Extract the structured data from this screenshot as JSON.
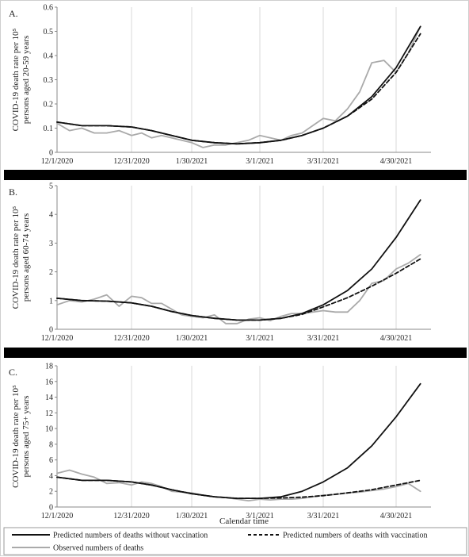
{
  "figure": {
    "x_axis_title": "Calendar time",
    "separator_color": "#000000"
  },
  "legend": {
    "items": [
      {
        "label": "Predicted numbers of deaths without vaccination",
        "color": "#111111",
        "style": "solid",
        "width": 2
      },
      {
        "label": "Predicted numbers of deaths with vaccination",
        "color": "#111111",
        "style": "dashed",
        "width": 2
      },
      {
        "label": "Observed numbers of deaths",
        "color": "#aaaaaa",
        "style": "solid",
        "width": 2
      }
    ]
  },
  "chart_data": [
    {
      "type": "line",
      "panel_label": "A.",
      "ylabel_lines": [
        "COVID-19 death rate per 10⁵",
        "persons aged 20-59 years"
      ],
      "xlabel": "",
      "x_tick_labels": [
        "12/1/2020",
        "12/31/2020",
        "1/30/2021",
        "3/1/2021",
        "3/31/2021",
        "4/30/2021"
      ],
      "x_range_days": [
        0,
        165
      ],
      "ylim": [
        0,
        0.6
      ],
      "y_ticks": [
        0,
        0.1,
        0.2,
        0.3,
        0.4,
        0.5,
        0.6
      ],
      "y_tick_labels": [
        "0",
        "0.1",
        "0.2",
        "0.3",
        "0.4",
        "0.5",
        "0.6"
      ],
      "grid": "vertical",
      "series": [
        {
          "name": "Predicted numbers of deaths without vaccination",
          "style": "solid",
          "color": "#111111",
          "x": [
            0,
            10,
            20,
            30,
            40,
            50,
            60,
            70,
            80,
            90,
            100,
            110,
            120,
            130,
            140,
            150,
            160
          ],
          "y": [
            0.125,
            0.11,
            0.11,
            0.105,
            0.09,
            0.07,
            0.05,
            0.04,
            0.035,
            0.04,
            0.05,
            0.07,
            0.1,
            0.15,
            0.23,
            0.35,
            0.52
          ]
        },
        {
          "name": "Predicted numbers of deaths with vaccination",
          "style": "dashed",
          "color": "#111111",
          "x": [
            0,
            10,
            20,
            30,
            40,
            50,
            60,
            70,
            80,
            90,
            100,
            110,
            120,
            130,
            140,
            150,
            160
          ],
          "y": [
            0.125,
            0.11,
            0.11,
            0.105,
            0.09,
            0.07,
            0.05,
            0.04,
            0.035,
            0.04,
            0.05,
            0.07,
            0.1,
            0.15,
            0.22,
            0.33,
            0.49
          ]
        },
        {
          "name": "Observed numbers of deaths",
          "style": "solid",
          "color": "#aaaaaa",
          "x": [
            0,
            5,
            10,
            15,
            20,
            25,
            30,
            35,
            40,
            45,
            50,
            55,
            60,
            65,
            70,
            75,
            80,
            85,
            90,
            95,
            100,
            105,
            110,
            115,
            120,
            125,
            130,
            135,
            140,
            145,
            150,
            155,
            160
          ],
          "y": [
            0.12,
            0.09,
            0.1,
            0.08,
            0.08,
            0.09,
            0.07,
            0.08,
            0.06,
            0.07,
            0.06,
            0.05,
            0.04,
            0.02,
            0.03,
            0.03,
            0.04,
            0.05,
            0.07,
            0.06,
            0.05,
            0.07,
            0.08,
            0.11,
            0.14,
            0.13,
            0.18,
            0.25,
            0.37,
            0.38,
            0.33,
            0.41,
            0.52
          ]
        }
      ]
    },
    {
      "type": "line",
      "panel_label": "B.",
      "ylabel_lines": [
        "COVID-19 death rate per 10⁵",
        "persons aged 60-74 years"
      ],
      "xlabel": "",
      "x_tick_labels": [
        "12/1/2020",
        "12/31/2020",
        "1/30/2021",
        "3/1/2021",
        "3/31/2021",
        "4/30/2021"
      ],
      "x_range_days": [
        0,
        165
      ],
      "ylim": [
        0,
        5
      ],
      "y_ticks": [
        0,
        1,
        2,
        3,
        4,
        5
      ],
      "y_tick_labels": [
        "0",
        "1",
        "2",
        "3",
        "4",
        "5"
      ],
      "grid": "vertical",
      "series": [
        {
          "name": "Predicted numbers of deaths without vaccination",
          "style": "solid",
          "color": "#111111",
          "x": [
            0,
            10,
            20,
            30,
            40,
            50,
            60,
            70,
            80,
            90,
            100,
            110,
            120,
            130,
            140,
            150,
            160
          ],
          "y": [
            1.08,
            1.0,
            0.98,
            0.92,
            0.8,
            0.62,
            0.48,
            0.38,
            0.32,
            0.32,
            0.38,
            0.55,
            0.85,
            1.35,
            2.1,
            3.2,
            4.5
          ]
        },
        {
          "name": "Predicted numbers of deaths with vaccination",
          "style": "dashed",
          "color": "#111111",
          "x": [
            0,
            10,
            20,
            30,
            40,
            50,
            60,
            70,
            80,
            90,
            100,
            110,
            120,
            130,
            140,
            150,
            160
          ],
          "y": [
            1.08,
            1.0,
            0.98,
            0.92,
            0.8,
            0.62,
            0.48,
            0.38,
            0.32,
            0.32,
            0.38,
            0.52,
            0.78,
            1.1,
            1.5,
            1.95,
            2.45
          ]
        },
        {
          "name": "Observed numbers of deaths",
          "style": "solid",
          "color": "#aaaaaa",
          "x": [
            0,
            5,
            10,
            15,
            20,
            25,
            30,
            35,
            40,
            45,
            50,
            55,
            60,
            65,
            70,
            75,
            80,
            85,
            90,
            95,
            100,
            105,
            110,
            115,
            120,
            125,
            130,
            135,
            140,
            145,
            150,
            155,
            160
          ],
          "y": [
            0.85,
            1.0,
            0.95,
            1.05,
            1.2,
            0.8,
            1.15,
            1.1,
            0.9,
            0.9,
            0.7,
            0.5,
            0.45,
            0.4,
            0.5,
            0.2,
            0.2,
            0.35,
            0.4,
            0.3,
            0.45,
            0.55,
            0.55,
            0.6,
            0.65,
            0.6,
            0.6,
            1.0,
            1.6,
            1.7,
            2.1,
            2.3,
            2.6
          ]
        }
      ]
    },
    {
      "type": "line",
      "panel_label": "C.",
      "ylabel_lines": [
        "COVID-19 death rate per 10⁵",
        "persons aged 75+ years"
      ],
      "xlabel": "Calendar time",
      "x_tick_labels": [
        "12/1/2020",
        "12/31/2020",
        "1/30/2021",
        "3/1/2021",
        "3/31/2021",
        "4/30/2021"
      ],
      "x_range_days": [
        0,
        165
      ],
      "ylim": [
        0,
        18
      ],
      "y_ticks": [
        0,
        2,
        4,
        6,
        8,
        10,
        12,
        14,
        16,
        18
      ],
      "y_tick_labels": [
        "0",
        "2",
        "4",
        "6",
        "8",
        "10",
        "12",
        "14",
        "16",
        "18"
      ],
      "grid": "vertical",
      "series": [
        {
          "name": "Predicted numbers of deaths without vaccination",
          "style": "solid",
          "color": "#111111",
          "x": [
            0,
            10,
            20,
            30,
            40,
            50,
            60,
            70,
            80,
            90,
            100,
            110,
            120,
            130,
            140,
            150,
            160
          ],
          "y": [
            3.8,
            3.4,
            3.4,
            3.2,
            2.8,
            2.2,
            1.7,
            1.3,
            1.1,
            1.1,
            1.3,
            2.0,
            3.2,
            5.0,
            7.8,
            11.5,
            15.7
          ]
        },
        {
          "name": "Predicted numbers of deaths with vaccination",
          "style": "dashed",
          "color": "#111111",
          "x": [
            0,
            10,
            20,
            30,
            40,
            50,
            60,
            70,
            80,
            90,
            100,
            110,
            120,
            130,
            140,
            150,
            160
          ],
          "y": [
            3.8,
            3.4,
            3.4,
            3.2,
            2.8,
            2.2,
            1.7,
            1.3,
            1.1,
            1.1,
            1.15,
            1.25,
            1.45,
            1.8,
            2.2,
            2.8,
            3.4
          ]
        },
        {
          "name": "Observed numbers of deaths",
          "style": "solid",
          "color": "#aaaaaa",
          "x": [
            0,
            5,
            10,
            15,
            20,
            25,
            30,
            35,
            40,
            45,
            50,
            55,
            60,
            65,
            70,
            75,
            80,
            85,
            90,
            95,
            100,
            105,
            110,
            115,
            120,
            125,
            130,
            135,
            140,
            145,
            150,
            155,
            160
          ],
          "y": [
            4.3,
            4.7,
            4.2,
            3.8,
            3.0,
            3.1,
            2.8,
            3.2,
            3.0,
            2.6,
            2.0,
            1.9,
            1.8,
            1.5,
            1.3,
            1.2,
            1.0,
            0.8,
            1.0,
            0.9,
            1.0,
            1.0,
            1.1,
            1.3,
            1.5,
            1.6,
            1.8,
            1.9,
            2.1,
            2.3,
            2.6,
            3.0,
            2.0
          ]
        }
      ]
    }
  ]
}
